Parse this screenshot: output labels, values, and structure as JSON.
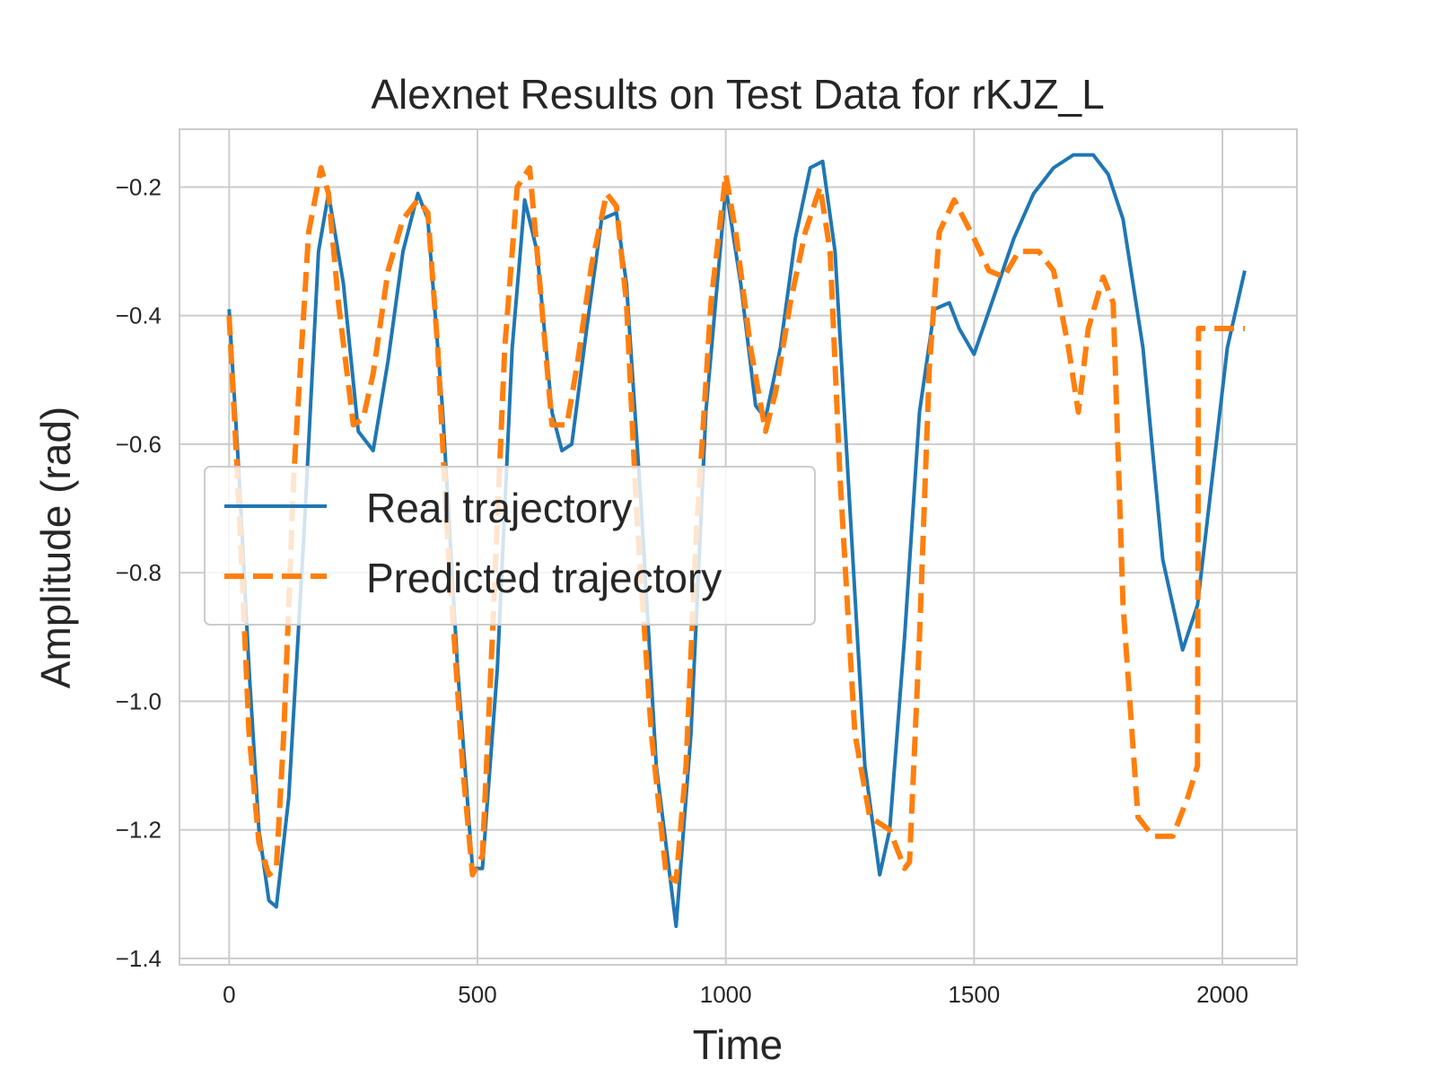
{
  "chart_data": {
    "type": "line",
    "title": "Alexnet Results on Test Data for rKJZ_L",
    "xlabel": "Time",
    "ylabel": "Amplitude (rad)",
    "xlim": [
      -100,
      2150
    ],
    "ylim": [
      -1.41,
      -0.11
    ],
    "xticks": [
      0,
      500,
      1000,
      1500,
      2000
    ],
    "xtick_labels": [
      "0",
      "500",
      "1000",
      "1500",
      "2000"
    ],
    "yticks": [
      -0.2,
      -0.4,
      -0.6,
      -0.8,
      -1.0,
      -1.2,
      -1.4
    ],
    "ytick_labels": [
      "−0.2",
      "−0.4",
      "−0.6",
      "−0.8",
      "−1.0",
      "−1.2",
      "−1.4"
    ],
    "grid": true,
    "legend_position": "center-left",
    "series": [
      {
        "name": "Real trajectory",
        "color": "#1f77b4",
        "style": "solid",
        "x": [
          0,
          20,
          40,
          60,
          80,
          95,
          120,
          150,
          180,
          200,
          230,
          260,
          290,
          320,
          350,
          380,
          400,
          430,
          460,
          490,
          510,
          540,
          570,
          595,
          620,
          650,
          670,
          690,
          720,
          750,
          780,
          800,
          830,
          860,
          900,
          930,
          960,
          1000,
          1030,
          1060,
          1080,
          1110,
          1140,
          1170,
          1195,
          1220,
          1250,
          1280,
          1310,
          1330,
          1360,
          1390,
          1420,
          1450,
          1470,
          1500,
          1540,
          1580,
          1620,
          1660,
          1700,
          1740,
          1770,
          1800,
          1840,
          1880,
          1920,
          1950,
          1980,
          2010,
          2045
        ],
        "y": [
          -0.39,
          -0.65,
          -0.95,
          -1.2,
          -1.31,
          -1.32,
          -1.15,
          -0.75,
          -0.3,
          -0.21,
          -0.35,
          -0.58,
          -0.61,
          -0.47,
          -0.3,
          -0.21,
          -0.25,
          -0.55,
          -0.95,
          -1.26,
          -1.26,
          -0.95,
          -0.45,
          -0.22,
          -0.3,
          -0.55,
          -0.61,
          -0.6,
          -0.42,
          -0.25,
          -0.24,
          -0.35,
          -0.7,
          -1.1,
          -1.35,
          -1.05,
          -0.55,
          -0.2,
          -0.35,
          -0.54,
          -0.56,
          -0.45,
          -0.28,
          -0.17,
          -0.16,
          -0.3,
          -0.7,
          -1.1,
          -1.27,
          -1.2,
          -0.9,
          -0.55,
          -0.39,
          -0.38,
          -0.42,
          -0.46,
          -0.37,
          -0.28,
          -0.21,
          -0.17,
          -0.15,
          -0.15,
          -0.18,
          -0.25,
          -0.45,
          -0.78,
          -0.92,
          -0.85,
          -0.65,
          -0.45,
          -0.33
        ]
      },
      {
        "name": "Predicted trajectory",
        "color": "#ff7f0e",
        "style": "dashed",
        "x": [
          0,
          20,
          40,
          60,
          80,
          95,
          110,
          130,
          160,
          185,
          200,
          220,
          250,
          270,
          290,
          320,
          350,
          380,
          400,
          420,
          440,
          470,
          490,
          510,
          530,
          555,
          580,
          605,
          620,
          650,
          680,
          700,
          730,
          760,
          780,
          800,
          820,
          850,
          880,
          900,
          920,
          940,
          970,
          1000,
          1020,
          1050,
          1080,
          1100,
          1130,
          1160,
          1190,
          1210,
          1230,
          1260,
          1290,
          1330,
          1360,
          1370,
          1390,
          1410,
          1430,
          1460,
          1480,
          1500,
          1530,
          1560,
          1590,
          1630,
          1660,
          1690,
          1710,
          1730,
          1760,
          1780,
          1800,
          1830,
          1860,
          1900,
          1930,
          1950,
          1952,
          1990,
          2045
        ],
        "y": [
          -0.4,
          -0.7,
          -1.05,
          -1.22,
          -1.27,
          -1.26,
          -1.05,
          -0.65,
          -0.27,
          -0.17,
          -0.21,
          -0.38,
          -0.57,
          -0.56,
          -0.49,
          -0.33,
          -0.25,
          -0.22,
          -0.24,
          -0.45,
          -0.75,
          -1.1,
          -1.27,
          -1.24,
          -0.9,
          -0.45,
          -0.2,
          -0.17,
          -0.3,
          -0.57,
          -0.57,
          -0.48,
          -0.32,
          -0.21,
          -0.23,
          -0.38,
          -0.7,
          -1.05,
          -1.27,
          -1.28,
          -1.1,
          -0.75,
          -0.38,
          -0.18,
          -0.27,
          -0.45,
          -0.58,
          -0.52,
          -0.38,
          -0.27,
          -0.2,
          -0.3,
          -0.65,
          -1.05,
          -1.18,
          -1.2,
          -1.26,
          -1.25,
          -0.9,
          -0.48,
          -0.27,
          -0.22,
          -0.25,
          -0.28,
          -0.33,
          -0.34,
          -0.3,
          -0.3,
          -0.33,
          -0.45,
          -0.55,
          -0.42,
          -0.34,
          -0.38,
          -0.85,
          -1.18,
          -1.21,
          -1.21,
          -1.15,
          -1.1,
          -0.42,
          -0.42,
          -0.42
        ]
      }
    ]
  }
}
